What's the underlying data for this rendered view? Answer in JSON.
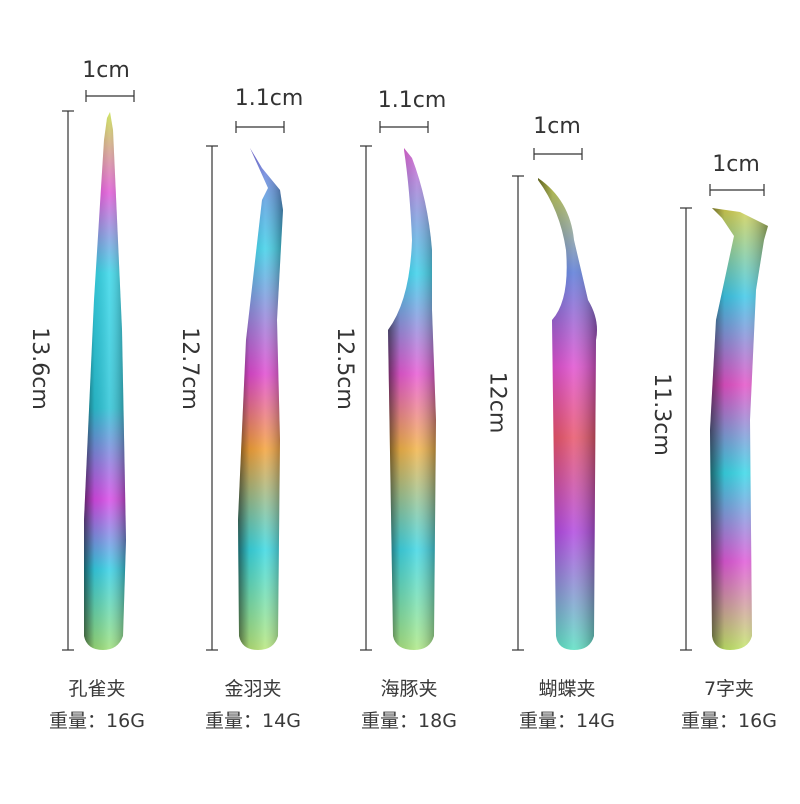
{
  "products": [
    {
      "name": "孔雀夹",
      "weight": "重量：16G",
      "length": "13.6cm",
      "width": "1cm"
    },
    {
      "name": "金羽夹",
      "weight": "重量：14G",
      "length": "12.7cm",
      "width": "1.1cm"
    },
    {
      "name": "海豚夹",
      "weight": "重量：18G",
      "length": "12.5cm",
      "width": "1.1cm"
    },
    {
      "name": "蝴蝶夹",
      "weight": "重量：14G",
      "length": "12cm",
      "width": "1cm"
    },
    {
      "name": "7字夹",
      "weight": "重量：16G",
      "length": "11.3cm",
      "width": "1cm"
    }
  ]
}
